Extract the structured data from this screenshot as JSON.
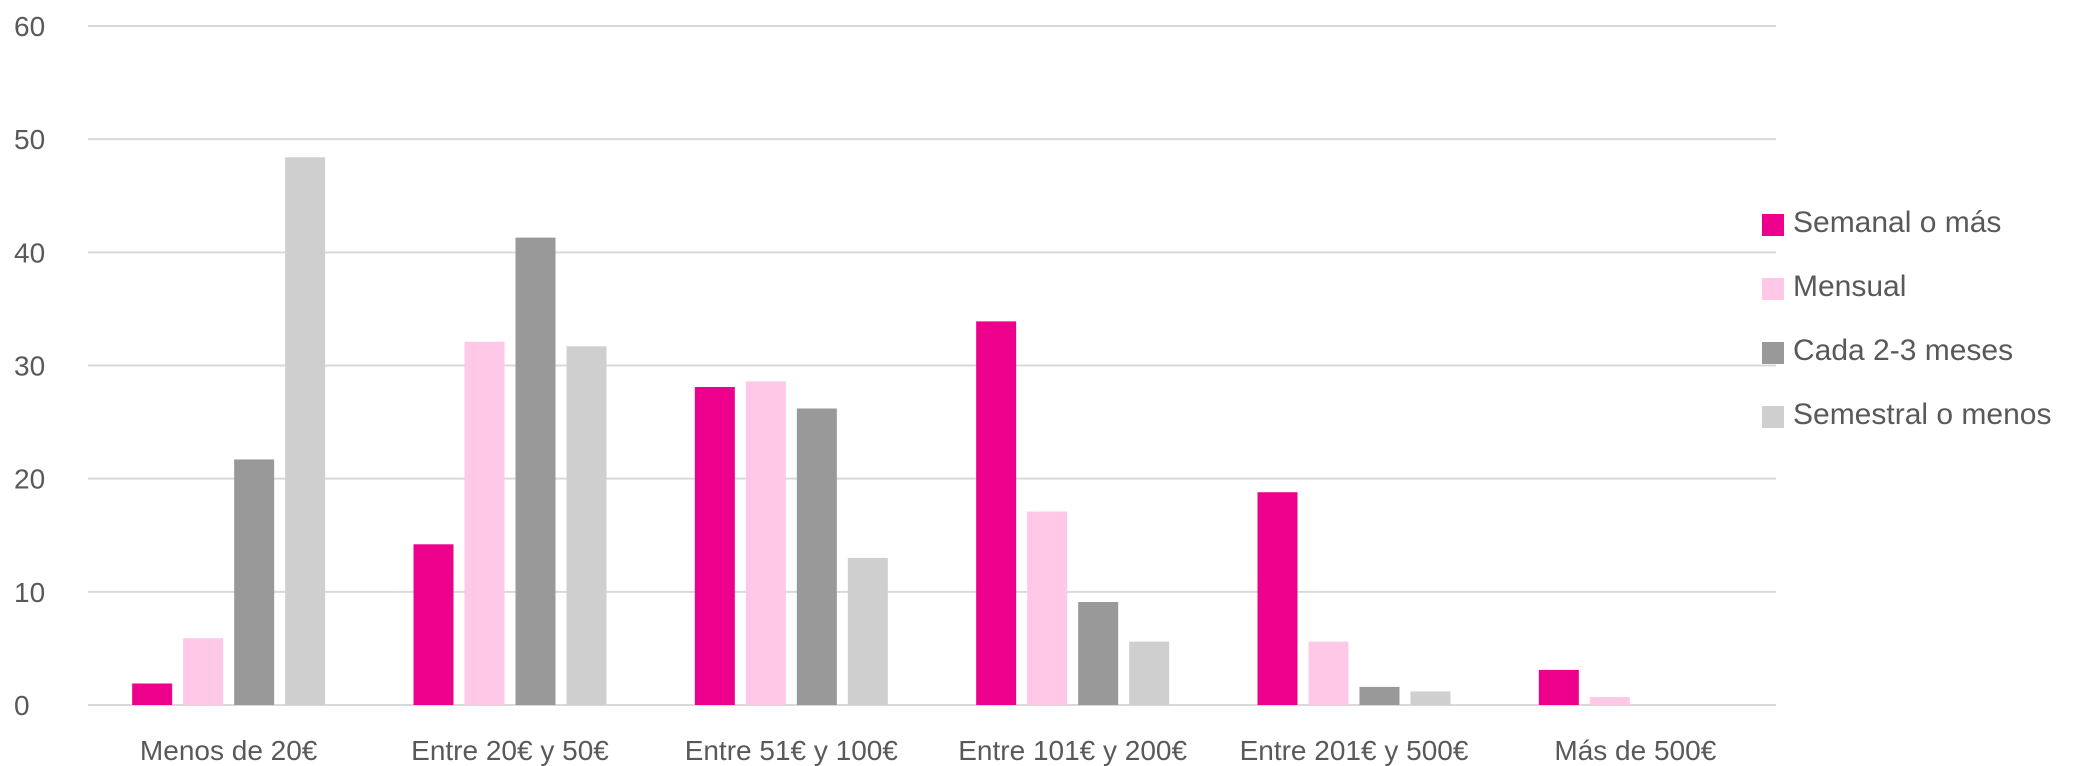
{
  "chart_data": {
    "type": "bar",
    "title": "",
    "xlabel": "",
    "ylabel": "",
    "ylim": [
      0,
      60
    ],
    "yticks": [
      0,
      10,
      20,
      30,
      40,
      50,
      60
    ],
    "grid": true,
    "legend_position": "right",
    "categories": [
      "Menos de 20€",
      "Entre 20€ y 50€",
      "Entre 51€ y 100€",
      "Entre 101€ y 200€",
      "Entre 201€ y 500€",
      "Más de 500€"
    ],
    "series": [
      {
        "name": "Semanal o más",
        "color": "#ec008c",
        "values": [
          1.9,
          14.2,
          28.1,
          33.9,
          18.8,
          3.1
        ]
      },
      {
        "name": "Mensual",
        "color": "#ffc8e6",
        "values": [
          5.9,
          32.1,
          28.6,
          17.1,
          5.6,
          0.7
        ]
      },
      {
        "name": "Cada 2-3 meses",
        "color": "#999999",
        "values": [
          21.7,
          41.3,
          26.2,
          9.1,
          1.6,
          0
        ]
      },
      {
        "name": "Semestral o menos",
        "color": "#cfcfcf",
        "values": [
          48.4,
          31.7,
          13.0,
          5.6,
          1.2,
          0
        ]
      }
    ]
  }
}
